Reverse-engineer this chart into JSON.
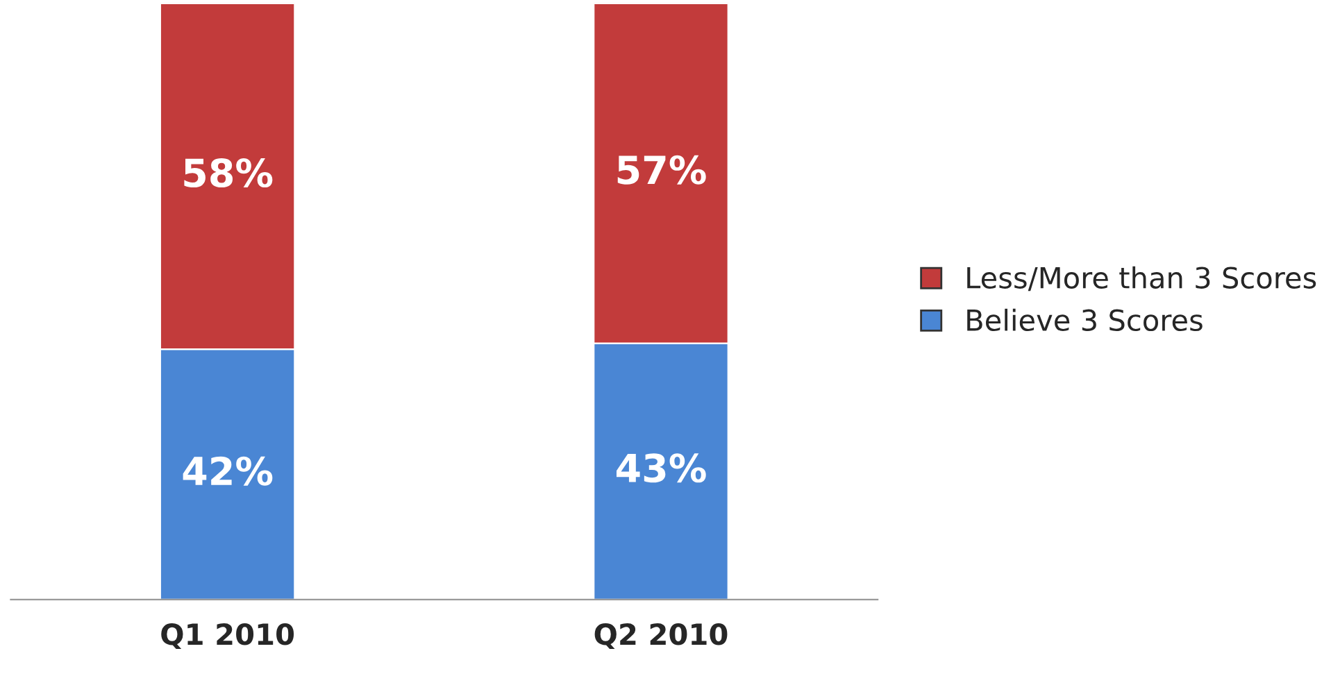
{
  "chart_data": {
    "type": "bar",
    "stacked": true,
    "categories": [
      "Q1 2010",
      "Q2 2010"
    ],
    "series": [
      {
        "name": "Believe 3 Scores",
        "color": "#4a86d4",
        "values": [
          42,
          43
        ],
        "value_labels": [
          "42%",
          "43%"
        ]
      },
      {
        "name": "Less/More than 3 Scores",
        "color": "#c23b3b",
        "values": [
          58,
          57
        ],
        "value_labels": [
          "58%",
          "57%"
        ]
      }
    ],
    "ylim": [
      0,
      100
    ],
    "tick_labels": "x",
    "legend": "right",
    "grid": false
  }
}
